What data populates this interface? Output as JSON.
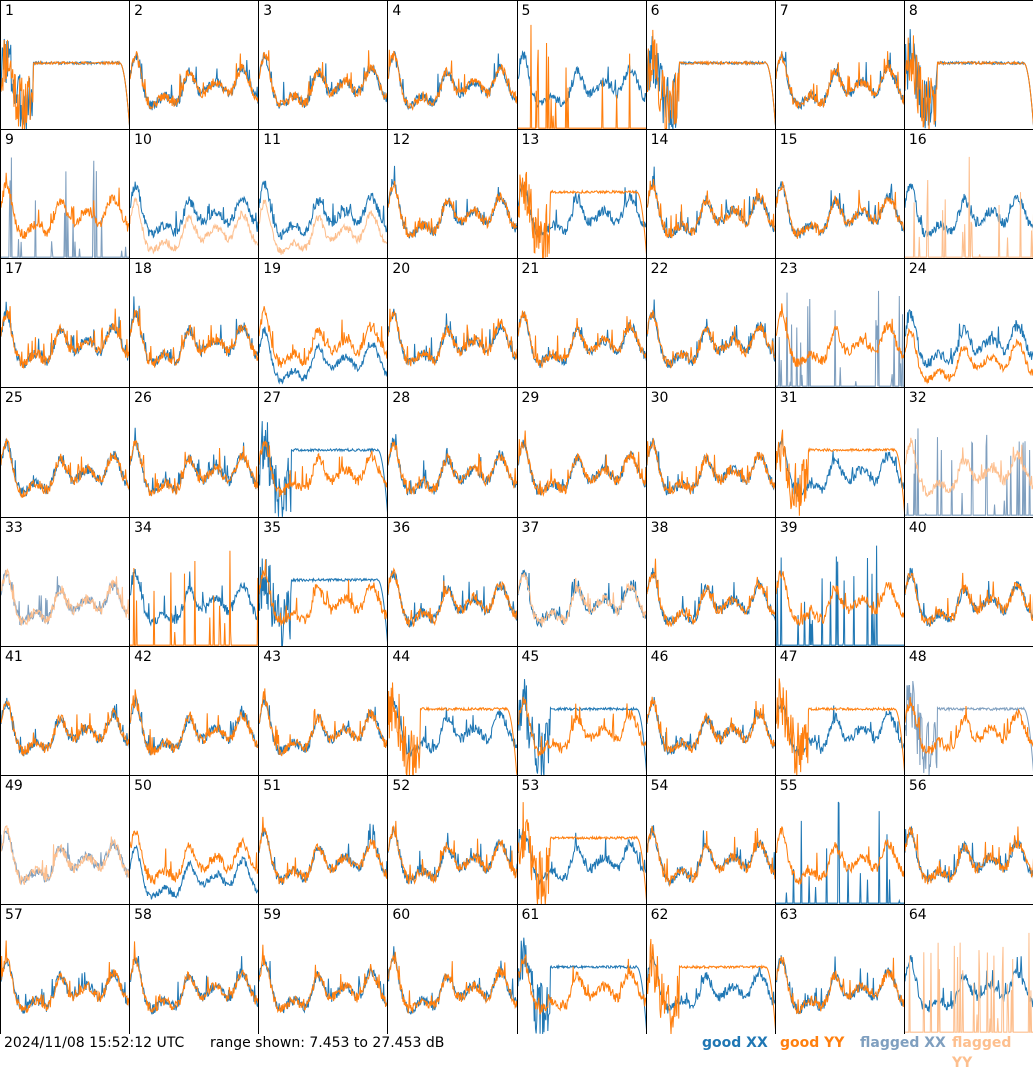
{
  "footer": {
    "timestamp": "2024/11/08 15:52:12 UTC",
    "range_text": "range shown: 7.453 to 27.453 dB"
  },
  "legend": {
    "good_xx": "good XX",
    "good_yy": "good YY",
    "flagged_xx": "flagged XX",
    "flagged_yy": "flagged YY"
  },
  "colors": {
    "good_xx": "#1f77b4",
    "good_yy": "#ff7f0e",
    "flagged_xx": "#7f9fbf",
    "flagged_yy": "#fdbf8e"
  },
  "chart_data": {
    "type": "line",
    "layout": "8x8 small multiples",
    "ylim": [
      7.453,
      27.453
    ],
    "y_unit": "dB",
    "panels": [
      {
        "label": "1",
        "xx": "rolloff",
        "yy": "rolloff"
      },
      {
        "label": "2",
        "xx": "normal",
        "yy": "normal"
      },
      {
        "label": "3",
        "xx": "normal",
        "yy": "normal"
      },
      {
        "label": "4",
        "xx": "normal",
        "yy": "normal"
      },
      {
        "label": "5",
        "xx": "normal",
        "yy": "spikes"
      },
      {
        "label": "6",
        "xx": "rolloff",
        "yy": "rolloff"
      },
      {
        "label": "7",
        "xx": "normal",
        "yy": "normal"
      },
      {
        "label": "8",
        "xx": "rolloff",
        "yy": "rolloff"
      },
      {
        "label": "9",
        "xx": "spikes",
        "yy": "normal",
        "flag_xx": true
      },
      {
        "label": "10",
        "xx": "normal",
        "yy": "low",
        "flag_yy": true
      },
      {
        "label": "11",
        "xx": "normal",
        "yy": "low",
        "flag_yy": true
      },
      {
        "label": "12",
        "xx": "normal",
        "yy": "normal"
      },
      {
        "label": "13",
        "xx": "normal",
        "yy": "rolloff"
      },
      {
        "label": "14",
        "xx": "normal",
        "yy": "normal"
      },
      {
        "label": "15",
        "xx": "normal",
        "yy": "normal"
      },
      {
        "label": "16",
        "xx": "normal",
        "yy": "spikes",
        "flag_yy": true
      },
      {
        "label": "17",
        "xx": "normal",
        "yy": "normal"
      },
      {
        "label": "18",
        "xx": "normal",
        "yy": "normal"
      },
      {
        "label": "19",
        "xx": "low",
        "yy": "normal"
      },
      {
        "label": "20",
        "xx": "normal",
        "yy": "normal"
      },
      {
        "label": "21",
        "xx": "normal",
        "yy": "normal"
      },
      {
        "label": "22",
        "xx": "normal",
        "yy": "normal"
      },
      {
        "label": "23",
        "xx": "spikes",
        "yy": "normal",
        "flag_xx": true
      },
      {
        "label": "24",
        "xx": "normal",
        "yy": "low"
      },
      {
        "label": "25",
        "xx": "normal",
        "yy": "normal"
      },
      {
        "label": "26",
        "xx": "normal",
        "yy": "normal"
      },
      {
        "label": "27",
        "xx": "rolloff",
        "yy": "normal"
      },
      {
        "label": "28",
        "xx": "normal",
        "yy": "normal"
      },
      {
        "label": "29",
        "xx": "normal",
        "yy": "normal"
      },
      {
        "label": "30",
        "xx": "normal",
        "yy": "normal"
      },
      {
        "label": "31",
        "xx": "normal",
        "yy": "rolloff"
      },
      {
        "label": "32",
        "xx": "spikes",
        "yy": "normal",
        "flag_xx": true,
        "flag_yy": true
      },
      {
        "label": "33",
        "xx": "normal",
        "yy": "normal",
        "flag_xx": true,
        "flag_yy": true
      },
      {
        "label": "34",
        "xx": "normal",
        "yy": "spikes"
      },
      {
        "label": "35",
        "xx": "rolloff",
        "yy": "normal"
      },
      {
        "label": "36",
        "xx": "normal",
        "yy": "normal"
      },
      {
        "label": "37",
        "xx": "normal",
        "yy": "normal",
        "flag_yy": true
      },
      {
        "label": "38",
        "xx": "normal",
        "yy": "normal"
      },
      {
        "label": "39",
        "xx": "spikes",
        "yy": "normal"
      },
      {
        "label": "40",
        "xx": "normal",
        "yy": "normal"
      },
      {
        "label": "41",
        "xx": "normal",
        "yy": "normal"
      },
      {
        "label": "42",
        "xx": "normal",
        "yy": "normal"
      },
      {
        "label": "43",
        "xx": "normal",
        "yy": "normal"
      },
      {
        "label": "44",
        "xx": "normal",
        "yy": "rolloff"
      },
      {
        "label": "45",
        "xx": "rolloff",
        "yy": "normal"
      },
      {
        "label": "46",
        "xx": "normal",
        "yy": "normal"
      },
      {
        "label": "47",
        "xx": "normal",
        "yy": "rolloff"
      },
      {
        "label": "48",
        "xx": "rolloff",
        "yy": "normal",
        "flag_xx": true
      },
      {
        "label": "49",
        "xx": "normal",
        "yy": "normal",
        "flag_xx": true,
        "flag_yy": true
      },
      {
        "label": "50",
        "xx": "low",
        "yy": "normal"
      },
      {
        "label": "51",
        "xx": "normal",
        "yy": "normal"
      },
      {
        "label": "52",
        "xx": "normal",
        "yy": "normal"
      },
      {
        "label": "53",
        "xx": "normal",
        "yy": "rolloff"
      },
      {
        "label": "54",
        "xx": "normal",
        "yy": "normal"
      },
      {
        "label": "55",
        "xx": "spikes",
        "yy": "normal"
      },
      {
        "label": "56",
        "xx": "normal",
        "yy": "normal"
      },
      {
        "label": "57",
        "xx": "normal",
        "yy": "normal"
      },
      {
        "label": "58",
        "xx": "normal",
        "yy": "normal"
      },
      {
        "label": "59",
        "xx": "normal",
        "yy": "normal"
      },
      {
        "label": "60",
        "xx": "normal",
        "yy": "normal"
      },
      {
        "label": "61",
        "xx": "rolloff",
        "yy": "normal"
      },
      {
        "label": "62",
        "xx": "normal",
        "yy": "rolloff"
      },
      {
        "label": "63",
        "xx": "normal",
        "yy": "normal"
      },
      {
        "label": "64",
        "xx": "normal",
        "yy": "spikes",
        "flag_yy": true
      }
    ]
  }
}
